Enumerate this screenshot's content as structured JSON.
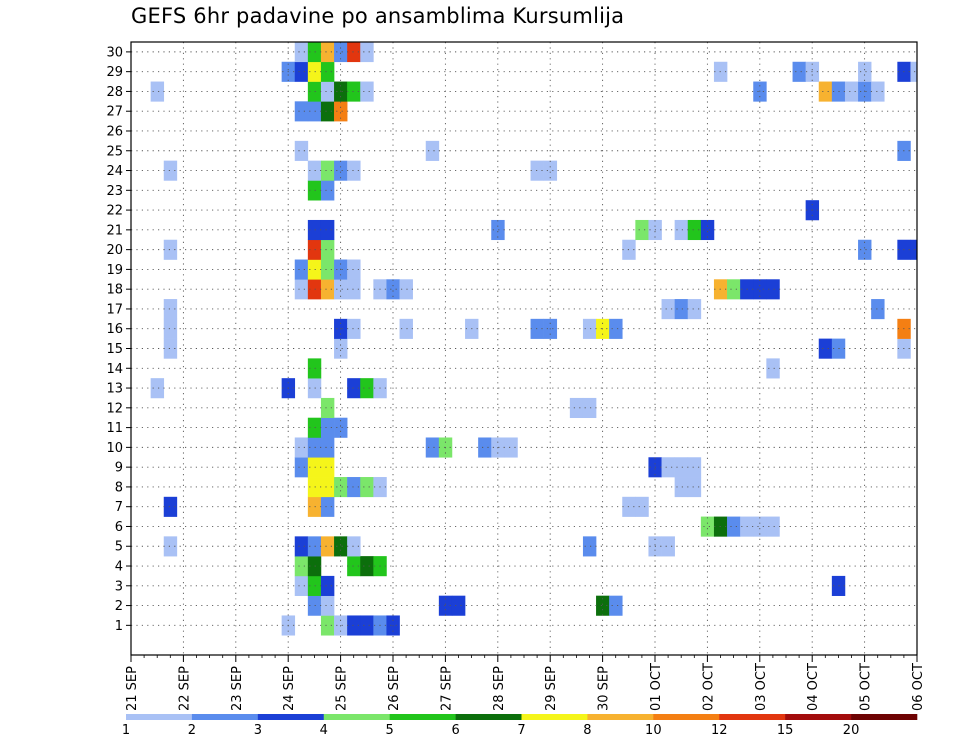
{
  "chart_data": {
    "type": "heatmap",
    "title": "GEFS 6hr padavine po ansamblima Kursumlija",
    "ylabel": "",
    "xlabel": "",
    "y_members": [
      1,
      2,
      3,
      4,
      5,
      6,
      7,
      8,
      9,
      10,
      11,
      12,
      13,
      14,
      15,
      16,
      17,
      18,
      19,
      20,
      21,
      22,
      23,
      24,
      25,
      26,
      27,
      28,
      29,
      30
    ],
    "x_tick_labels": [
      "21 SEP",
      "22 SEP",
      "23 SEP",
      "24 SEP",
      "25 SEP",
      "26 SEP",
      "27 SEP",
      "28 SEP",
      "29 SEP",
      "30 SEP",
      "01 OCT",
      "02 OCT",
      "03 OCT",
      "04 OCT",
      "05 OCT",
      "06 OCT"
    ],
    "x_unit": "6-hour step (4 steps per day)",
    "xlim": [
      0,
      60
    ],
    "grid": true,
    "colorbar": {
      "labels": [
        "1",
        "2",
        "3",
        "4",
        "5",
        "6",
        "7",
        "8",
        "10",
        "12",
        "15",
        "20"
      ],
      "colors": [
        "#a9c1f5",
        "#5a8ced",
        "#1b3fd6",
        "#7be66a",
        "#22c51c",
        "#0c6f0c",
        "#f5f51a",
        "#f7b230",
        "#f47f13",
        "#e2360f",
        "#a30c0c",
        "#6e0303"
      ]
    },
    "cells": [
      [
        1,
        12,
        0
      ],
      [
        1,
        15,
        3
      ],
      [
        1,
        16,
        0
      ],
      [
        1,
        17,
        2
      ],
      [
        1,
        18,
        2
      ],
      [
        1,
        19,
        1
      ],
      [
        1,
        20,
        2
      ],
      [
        2,
        14,
        1
      ],
      [
        2,
        15,
        0
      ],
      [
        2,
        24,
        2
      ],
      [
        2,
        25,
        2
      ],
      [
        2,
        36,
        5
      ],
      [
        2,
        37,
        1
      ],
      [
        3,
        13,
        0
      ],
      [
        3,
        14,
        4
      ],
      [
        3,
        15,
        2
      ],
      [
        3,
        54,
        2
      ],
      [
        4,
        13,
        3
      ],
      [
        4,
        14,
        5
      ],
      [
        4,
        17,
        4
      ],
      [
        4,
        18,
        5
      ],
      [
        4,
        19,
        4
      ],
      [
        5,
        3,
        0
      ],
      [
        5,
        13,
        2
      ],
      [
        5,
        14,
        1
      ],
      [
        5,
        15,
        7
      ],
      [
        5,
        16,
        5
      ],
      [
        5,
        17,
        0
      ],
      [
        5,
        35,
        1
      ],
      [
        5,
        40,
        0
      ],
      [
        5,
        41,
        0
      ],
      [
        6,
        44,
        3
      ],
      [
        6,
        45,
        5
      ],
      [
        6,
        46,
        1
      ],
      [
        6,
        47,
        0
      ],
      [
        6,
        48,
        0
      ],
      [
        6,
        49,
        0
      ],
      [
        7,
        3,
        2
      ],
      [
        7,
        14,
        7
      ],
      [
        7,
        15,
        1
      ],
      [
        7,
        38,
        0
      ],
      [
        7,
        39,
        0
      ],
      [
        8,
        14,
        6
      ],
      [
        8,
        15,
        6
      ],
      [
        8,
        16,
        3
      ],
      [
        8,
        17,
        1
      ],
      [
        8,
        18,
        3
      ],
      [
        8,
        19,
        0
      ],
      [
        8,
        42,
        0
      ],
      [
        8,
        43,
        0
      ],
      [
        9,
        13,
        1
      ],
      [
        9,
        14,
        6
      ],
      [
        9,
        15,
        6
      ],
      [
        9,
        40,
        2
      ],
      [
        9,
        41,
        0
      ],
      [
        9,
        42,
        0
      ],
      [
        9,
        43,
        0
      ],
      [
        10,
        13,
        0
      ],
      [
        10,
        14,
        1
      ],
      [
        10,
        15,
        1
      ],
      [
        10,
        23,
        1
      ],
      [
        10,
        24,
        3
      ],
      [
        10,
        27,
        1
      ],
      [
        10,
        28,
        0
      ],
      [
        10,
        29,
        0
      ],
      [
        11,
        14,
        4
      ],
      [
        11,
        15,
        1
      ],
      [
        11,
        16,
        1
      ],
      [
        12,
        15,
        3
      ],
      [
        12,
        34,
        0
      ],
      [
        12,
        35,
        0
      ],
      [
        13,
        2,
        0
      ],
      [
        13,
        12,
        2
      ],
      [
        13,
        14,
        0
      ],
      [
        13,
        17,
        2
      ],
      [
        13,
        18,
        4
      ],
      [
        13,
        19,
        0
      ],
      [
        14,
        14,
        4
      ],
      [
        14,
        49,
        0
      ],
      [
        15,
        3,
        0
      ],
      [
        15,
        16,
        0
      ],
      [
        15,
        53,
        2
      ],
      [
        15,
        54,
        1
      ],
      [
        15,
        59,
        0
      ],
      [
        16,
        3,
        0
      ],
      [
        16,
        16,
        2
      ],
      [
        16,
        17,
        0
      ],
      [
        16,
        21,
        0
      ],
      [
        16,
        26,
        0
      ],
      [
        16,
        31,
        1
      ],
      [
        16,
        32,
        1
      ],
      [
        16,
        35,
        0
      ],
      [
        16,
        36,
        6
      ],
      [
        16,
        37,
        1
      ],
      [
        16,
        59,
        8
      ],
      [
        17,
        3,
        0
      ],
      [
        17,
        41,
        0
      ],
      [
        17,
        42,
        1
      ],
      [
        17,
        43,
        0
      ],
      [
        17,
        57,
        1
      ],
      [
        18,
        13,
        0
      ],
      [
        18,
        14,
        9
      ],
      [
        18,
        15,
        7
      ],
      [
        18,
        16,
        0
      ],
      [
        18,
        17,
        0
      ],
      [
        18,
        19,
        0
      ],
      [
        18,
        20,
        1
      ],
      [
        18,
        21,
        0
      ],
      [
        18,
        45,
        7
      ],
      [
        18,
        46,
        3
      ],
      [
        18,
        47,
        2
      ],
      [
        18,
        48,
        2
      ],
      [
        18,
        49,
        2
      ],
      [
        19,
        13,
        1
      ],
      [
        19,
        14,
        6
      ],
      [
        19,
        15,
        3
      ],
      [
        19,
        16,
        1
      ],
      [
        19,
        17,
        0
      ],
      [
        20,
        3,
        0
      ],
      [
        20,
        14,
        9
      ],
      [
        20,
        15,
        3
      ],
      [
        20,
        38,
        0
      ],
      [
        20,
        56,
        1
      ],
      [
        20,
        59,
        2
      ],
      [
        20,
        60,
        2
      ],
      [
        21,
        14,
        2
      ],
      [
        21,
        15,
        2
      ],
      [
        21,
        28,
        1
      ],
      [
        21,
        39,
        3
      ],
      [
        21,
        40,
        0
      ],
      [
        21,
        42,
        0
      ],
      [
        21,
        43,
        4
      ],
      [
        21,
        44,
        2
      ],
      [
        22,
        52,
        2
      ],
      [
        23,
        14,
        4
      ],
      [
        23,
        15,
        1
      ],
      [
        24,
        3,
        0
      ],
      [
        24,
        14,
        0
      ],
      [
        24,
        15,
        3
      ],
      [
        24,
        16,
        1
      ],
      [
        24,
        17,
        0
      ],
      [
        24,
        31,
        0
      ],
      [
        24,
        32,
        0
      ],
      [
        25,
        13,
        0
      ],
      [
        25,
        23,
        0
      ],
      [
        25,
        59,
        1
      ],
      [
        27,
        13,
        1
      ],
      [
        27,
        14,
        1
      ],
      [
        27,
        15,
        5
      ],
      [
        27,
        16,
        8
      ],
      [
        28,
        2,
        0
      ],
      [
        28,
        14,
        4
      ],
      [
        28,
        15,
        0
      ],
      [
        28,
        16,
        5
      ],
      [
        28,
        17,
        4
      ],
      [
        28,
        18,
        0
      ],
      [
        28,
        48,
        1
      ],
      [
        28,
        53,
        7
      ],
      [
        28,
        54,
        1
      ],
      [
        28,
        55,
        0
      ],
      [
        28,
        56,
        1
      ],
      [
        28,
        57,
        0
      ],
      [
        29,
        12,
        1
      ],
      [
        29,
        13,
        2
      ],
      [
        29,
        14,
        6
      ],
      [
        29,
        15,
        4
      ],
      [
        29,
        45,
        0
      ],
      [
        29,
        51,
        1
      ],
      [
        29,
        52,
        0
      ],
      [
        29,
        56,
        0
      ],
      [
        29,
        59,
        2
      ],
      [
        29,
        60,
        0
      ],
      [
        30,
        13,
        0
      ],
      [
        30,
        14,
        4
      ],
      [
        30,
        15,
        7
      ],
      [
        30,
        16,
        1
      ],
      [
        30,
        17,
        9
      ],
      [
        30,
        18,
        0
      ]
    ]
  }
}
